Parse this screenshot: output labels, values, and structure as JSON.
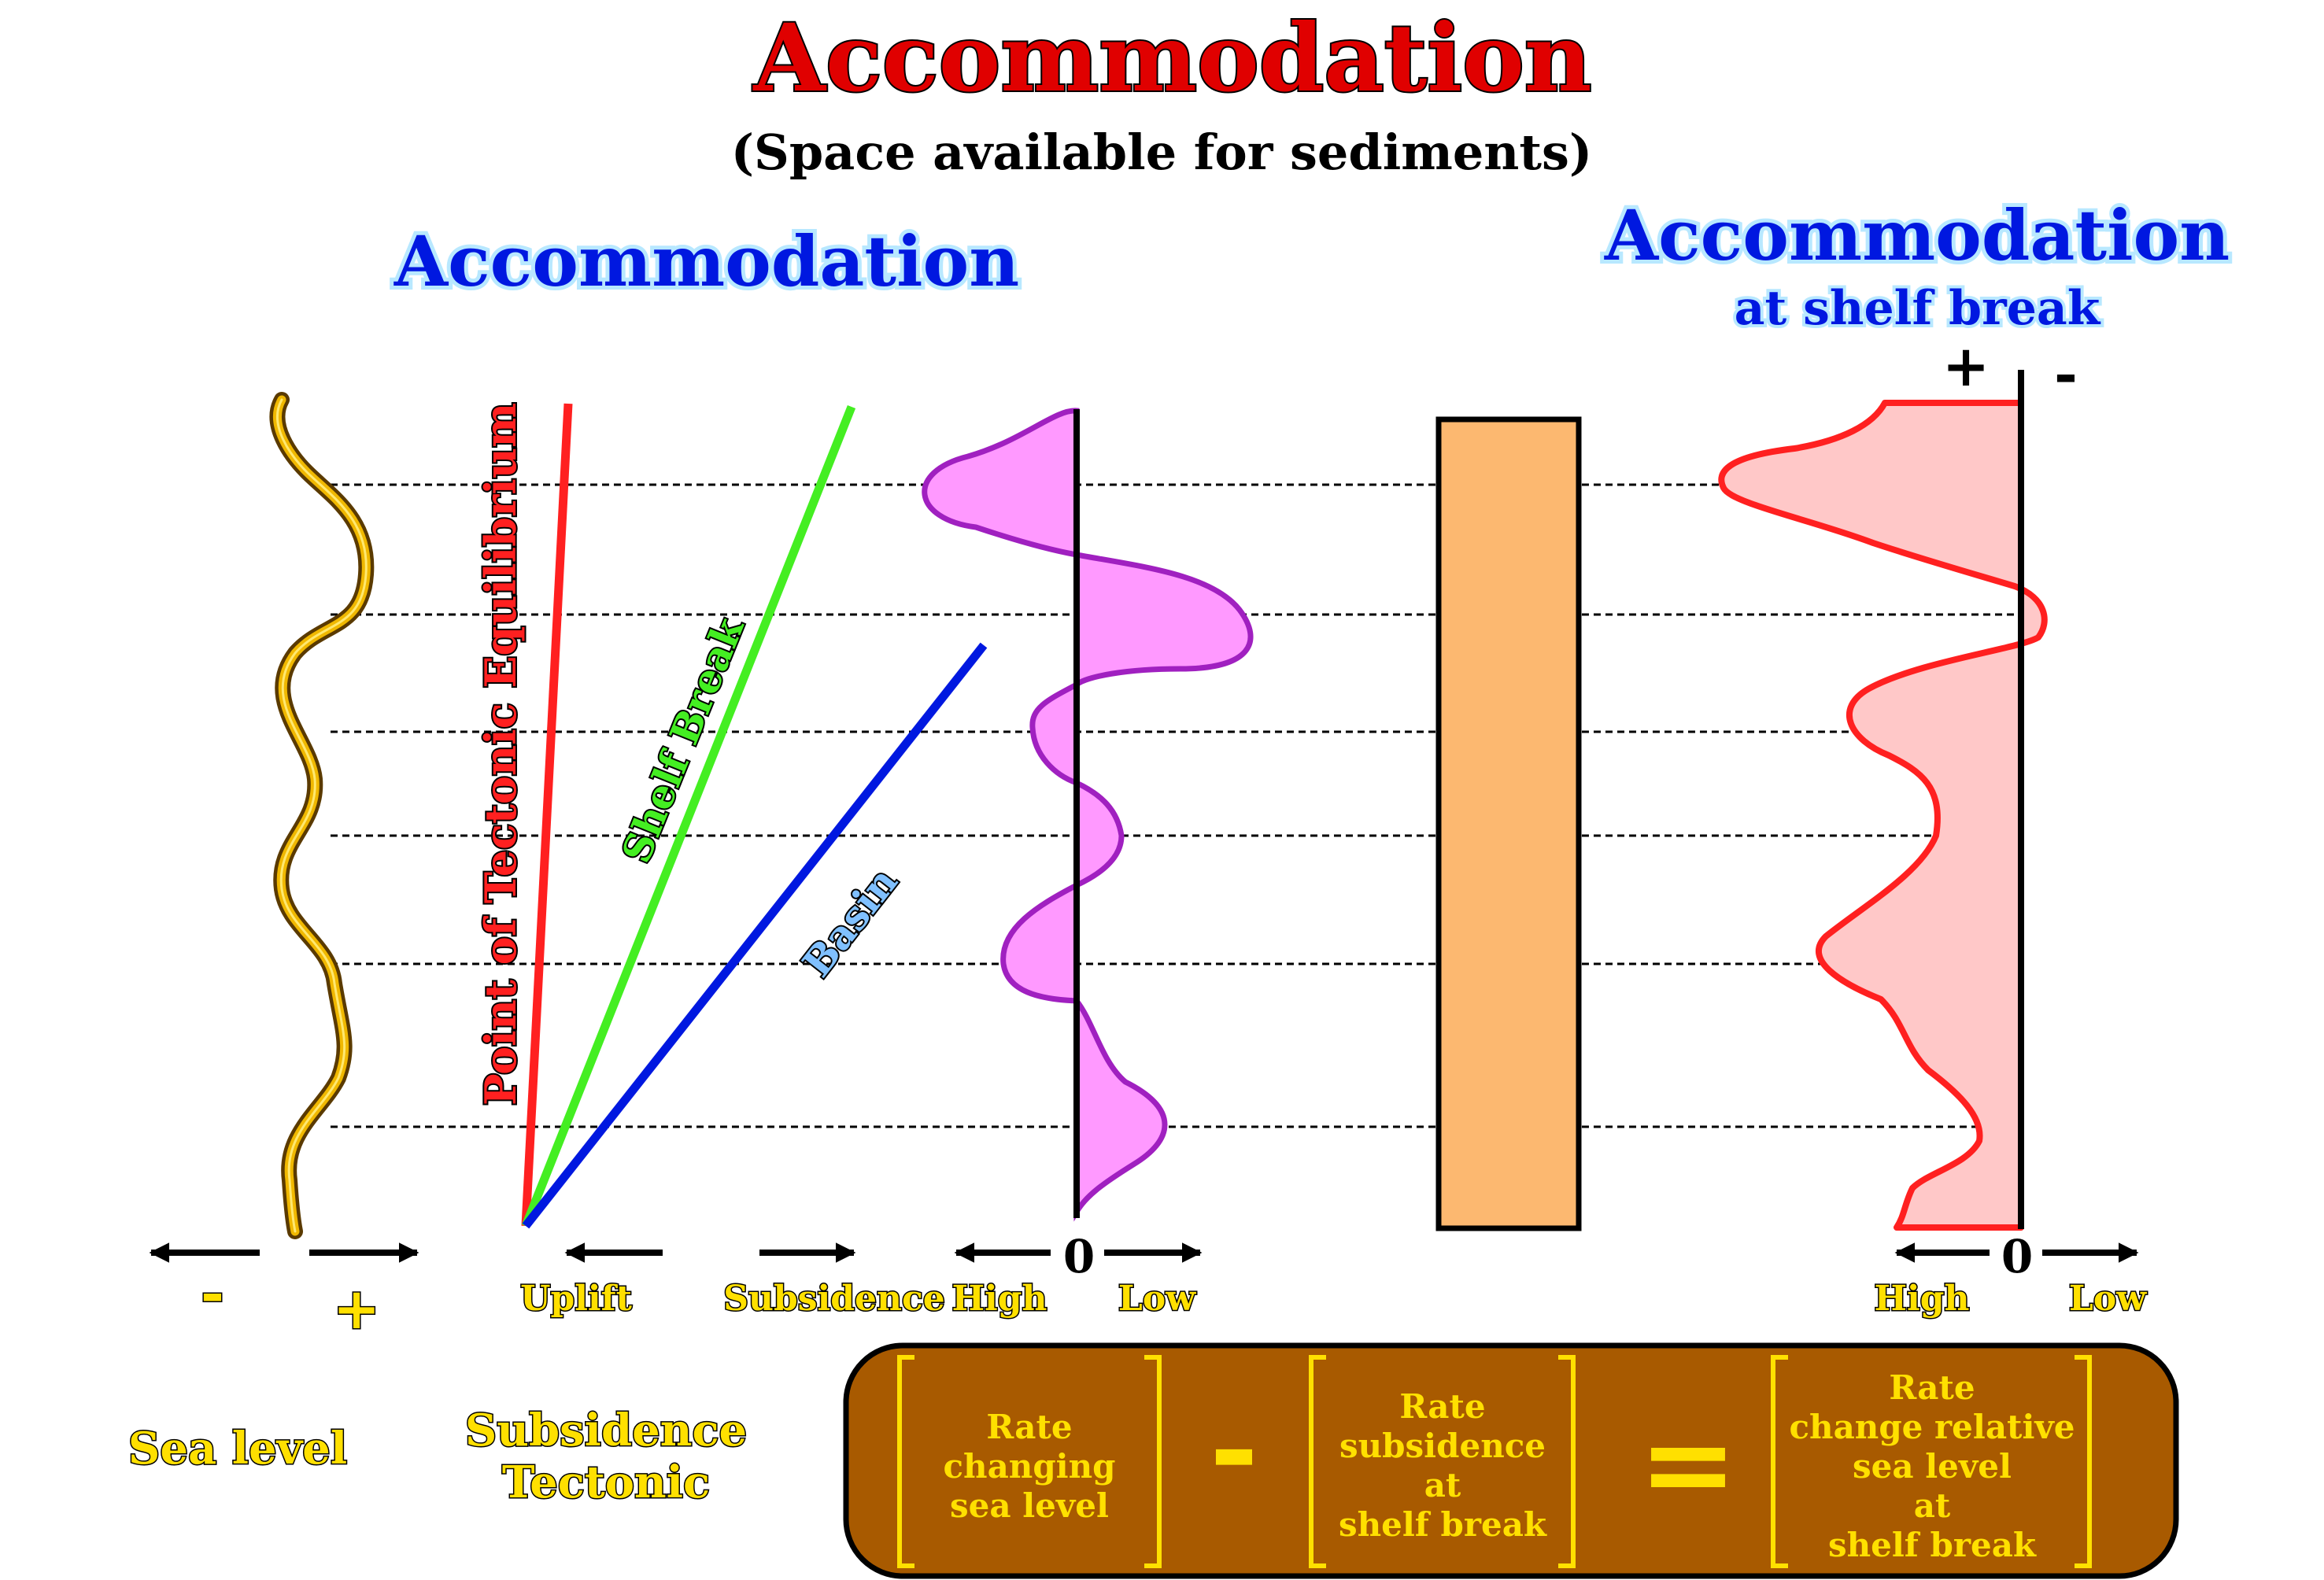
{
  "title": "Accommodation",
  "subtitle": "(Space available for sediments)",
  "left_heading": "Accommodation",
  "right_heading": "Accommodation",
  "right_subheading": "at shelf break",
  "lines": {
    "red_label": "Point of Tectonic Equilibrium",
    "green_label": "Shelf Break",
    "blue_label": "Basin"
  },
  "axis_labels": {
    "minus": "-",
    "plus": "+",
    "uplift": "Uplift",
    "subsidence": "Subsidence",
    "high": "High",
    "zero": "0",
    "low": "Low",
    "high_right": "High",
    "zero_right": "0",
    "low_right": "Low",
    "plus_top": "+",
    "minus_top": "-"
  },
  "bottom_labels": {
    "sea_level": "Sea level",
    "subsidence_line1": "Subsidence",
    "subsidence_line2": "Tectonic"
  },
  "equation": {
    "term1": [
      "Rate",
      "changing",
      "sea level"
    ],
    "operator1": "-",
    "term2": [
      "Rate",
      "subsidence",
      "at",
      "shelf break"
    ],
    "operator2": "=",
    "term3": [
      "Rate",
      "change relative",
      "sea level",
      "at",
      "shelf break"
    ]
  },
  "colors": {
    "title": "#e00000",
    "heading": "#0018e0",
    "sea_level_curve": "#e0a800",
    "red_line": "#ff2020",
    "green_line": "#44ee22",
    "blue_line": "#0018e0",
    "purple_curve": "#a020c0",
    "purple_fill": "#ff99ff",
    "red_curve": "#ff2020",
    "red_fill": "#ffc8c8",
    "orange_bar": "#fcb870",
    "equation_box": "#a85a00",
    "equation_text": "#ffff00",
    "label_yellow": "#ffe000"
  }
}
